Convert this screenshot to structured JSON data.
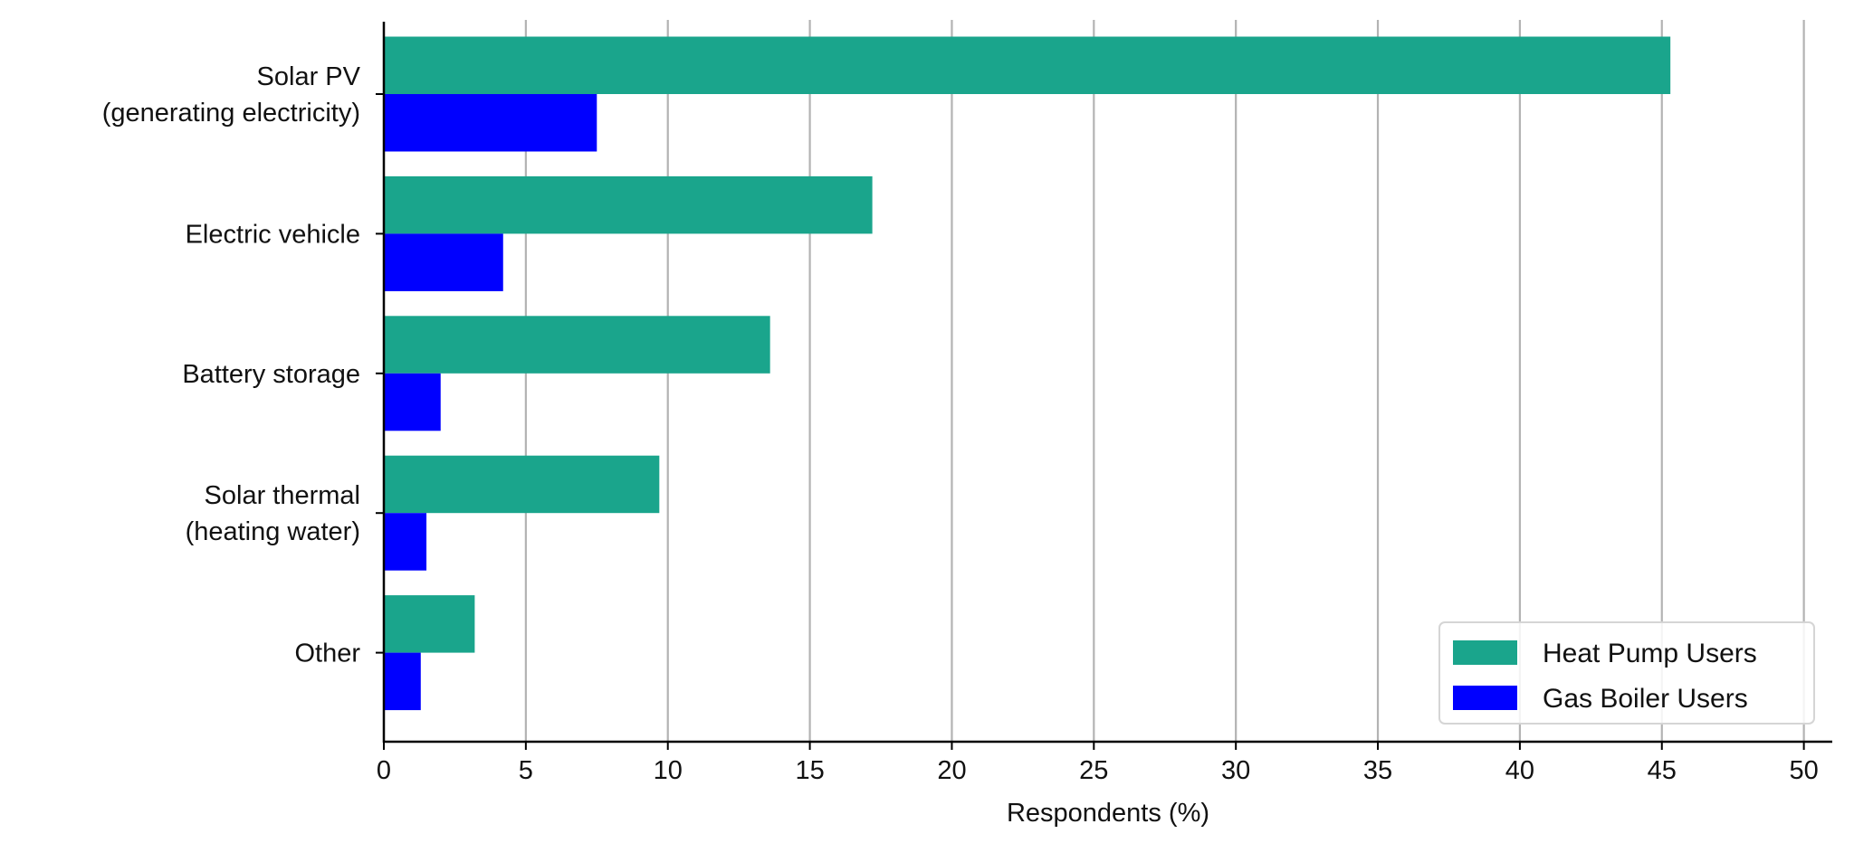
{
  "chart_data": {
    "type": "bar",
    "orientation": "horizontal",
    "categories": [
      [
        "Solar PV",
        "(generating electricity)"
      ],
      [
        "Electric vehicle"
      ],
      [
        "Battery storage"
      ],
      [
        "Solar thermal",
        "(heating water)"
      ],
      [
        "Other"
      ]
    ],
    "series": [
      {
        "name": "Heat Pump Users",
        "color": "#1aa58c",
        "values": [
          45.3,
          17.2,
          13.6,
          9.7,
          3.2
        ]
      },
      {
        "name": "Gas Boiler Users",
        "color": "#0000ff",
        "values": [
          7.5,
          4.2,
          2.0,
          1.5,
          1.3
        ]
      }
    ],
    "xlabel": "Respondents (%)",
    "ylabel": "",
    "title": "",
    "xlim": [
      0,
      51
    ],
    "xticks": [
      0,
      5,
      10,
      15,
      20,
      25,
      30,
      35,
      40,
      45,
      50
    ],
    "grid": "vertical",
    "legend_position": "bottom-right"
  }
}
